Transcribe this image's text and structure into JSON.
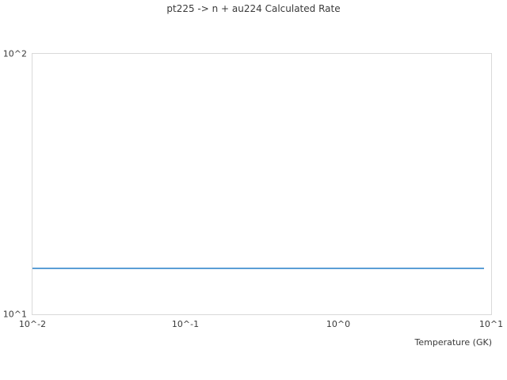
{
  "chart": {
    "title": "pt225 -> n + au224 Calculated Rate",
    "xlabel": "Temperature (GK)"
  },
  "chart_data": {
    "type": "line",
    "title": "pt225 -> n + au224 Calculated Rate",
    "xlabel": "Temperature (GK)",
    "ylabel": "",
    "xscale": "log",
    "yscale": "log",
    "xlim": [
      0.01,
      10
    ],
    "ylim": [
      10,
      100
    ],
    "grid": false,
    "legend": false,
    "x_ticks": [
      {
        "value": 0.01,
        "label": "10^-2"
      },
      {
        "value": 0.1,
        "label": "10^-1"
      },
      {
        "value": 1,
        "label": "10^0"
      },
      {
        "value": 10,
        "label": "10^1"
      }
    ],
    "y_ticks": [
      {
        "value": 10,
        "label": "10^1"
      },
      {
        "value": 100,
        "label": "10^2"
      }
    ],
    "series": [
      {
        "name": "calculated rate",
        "color": "#5a9ed6",
        "x": [
          0.01,
          9.0
        ],
        "y": [
          15,
          15
        ],
        "note": "constant rate ~15 across full temperature range"
      }
    ]
  },
  "colors": {
    "line": "#5a9ed6",
    "plot_border": "#d9d9d9",
    "text": "#3a3a3a",
    "background": "#ffffff"
  }
}
